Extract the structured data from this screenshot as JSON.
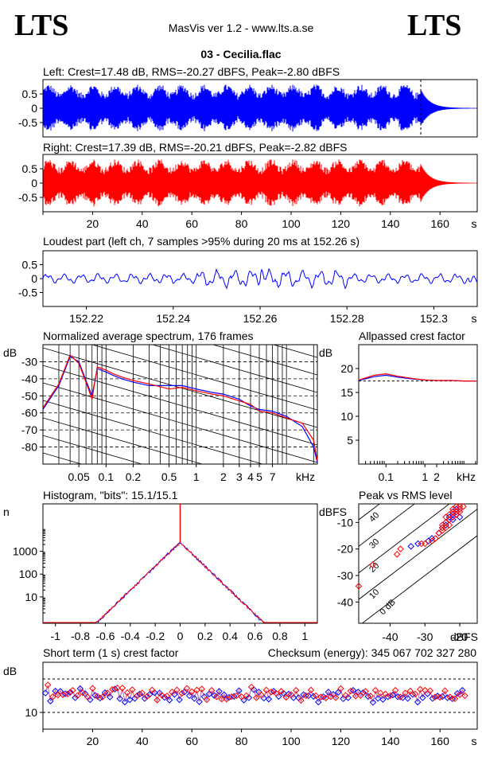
{
  "header": {
    "logo_left": "LTS",
    "logo_right": "LTS",
    "app_title": "MasVis ver 1.2 - www.lts.a.se",
    "file_title": "03 - Cecilia.flac"
  },
  "colors": {
    "left": "#0000ff",
    "right": "#ff0000",
    "axis": "#000000",
    "bg": "#ffffff"
  },
  "chart_data": [
    {
      "id": "left_waveform",
      "type": "area",
      "title": "Left: Crest=17.48 dB, RMS=-20.27 dBFS, Peak=-2.80 dBFS",
      "series": [
        {
          "name": "Left",
          "color": "#0000ff"
        }
      ],
      "yticks": [
        "0.5",
        "0",
        "-0.5"
      ],
      "ylim": [
        -1,
        1
      ],
      "xlim": [
        0,
        175
      ],
      "duration_s": 170,
      "fade_start_s": 152,
      "marker_s": 152.26
    },
    {
      "id": "right_waveform",
      "type": "area",
      "title": "Right: Crest=17.39 dB, RMS=-20.21 dBFS, Peak=-2.82 dBFS",
      "series": [
        {
          "name": "Right",
          "color": "#ff0000"
        }
      ],
      "yticks": [
        "0.5",
        "0",
        "-0.5"
      ],
      "ylim": [
        -1,
        1
      ],
      "xlim": [
        0,
        175
      ],
      "duration_s": 170,
      "xticks": [
        "20",
        "40",
        "60",
        "80",
        "100",
        "120",
        "140",
        "160"
      ],
      "xunit": "s"
    },
    {
      "id": "loudest_part",
      "type": "line",
      "title": "Loudest part (left  ch, 7 samples >95% during 20 ms at 152.26 s)",
      "yticks": [
        "0.5",
        "0",
        "-0.5"
      ],
      "ylim": [
        -1,
        1
      ],
      "xlim": [
        152.21,
        152.31
      ],
      "xticks": [
        "152.22",
        "152.24",
        "152.26",
        "152.28",
        "152.3"
      ],
      "xunit": "s"
    },
    {
      "id": "avg_spectrum",
      "type": "line",
      "title": "Normalized average spectrum, 176 frames",
      "ylabel": "dB",
      "yticks": [
        "-30",
        "-40",
        "-50",
        "-60",
        "-70",
        "-80"
      ],
      "ylim": [
        -90,
        -20
      ],
      "xscale": "log",
      "xlim": [
        0.02,
        22
      ],
      "xunit": "kHz",
      "xticks": [
        "0.05",
        "0.1",
        "0.2",
        "0.5",
        "1",
        "2",
        "3",
        "4",
        "5",
        "7"
      ],
      "series": [
        {
          "name": "Left",
          "color": "#0000ff",
          "x": [
            0.02,
            0.03,
            0.04,
            0.05,
            0.06,
            0.07,
            0.08,
            0.1,
            0.12,
            0.15,
            0.2,
            0.3,
            0.5,
            0.7,
            1,
            1.5,
            2,
            3,
            4,
            5,
            7,
            10,
            15,
            20,
            22
          ],
          "y": [
            -58,
            -44,
            -27,
            -30,
            -41,
            -50,
            -34,
            -36,
            -38,
            -40,
            -42,
            -44,
            -44,
            -44,
            -46,
            -48,
            -49,
            -52,
            -56,
            -58,
            -59,
            -62,
            -68,
            -80,
            -89
          ]
        },
        {
          "name": "Right",
          "color": "#ff0000",
          "x": [
            0.02,
            0.03,
            0.04,
            0.05,
            0.06,
            0.07,
            0.08,
            0.1,
            0.12,
            0.15,
            0.2,
            0.3,
            0.5,
            0.7,
            1,
            1.5,
            2,
            3,
            4,
            5,
            7,
            10,
            15,
            20,
            22
          ],
          "y": [
            -57,
            -43,
            -26,
            -31,
            -42,
            -52,
            -33,
            -35,
            -37,
            -39,
            -41,
            -43,
            -46,
            -45,
            -47,
            -49,
            -50,
            -53,
            -55,
            -59,
            -60,
            -63,
            -66,
            -76,
            -88
          ]
        }
      ]
    },
    {
      "id": "allpassed_crest",
      "type": "line",
      "title": "Allpassed crest factor",
      "ylabel": "dB",
      "yticks": [
        "20",
        "15",
        "10",
        "5"
      ],
      "ylim": [
        0,
        25
      ],
      "xscale": "log",
      "xlim": [
        0.02,
        22
      ],
      "xunit": "kHz",
      "xticks": [
        "0.1",
        "1",
        "2"
      ],
      "reference_db": 17.4,
      "series": [
        {
          "name": "Left",
          "color": "#0000ff",
          "x": [
            0.02,
            0.05,
            0.1,
            0.2,
            0.5,
            1,
            2,
            5,
            10,
            22
          ],
          "y": [
            17.5,
            18.3,
            18.6,
            18.2,
            17.8,
            17.6,
            17.5,
            17.5,
            17.4,
            17.4
          ]
        },
        {
          "name": "Right",
          "color": "#ff0000",
          "x": [
            0.02,
            0.05,
            0.1,
            0.2,
            0.5,
            1,
            2,
            5,
            10,
            22
          ],
          "y": [
            17.6,
            18.6,
            18.9,
            18.4,
            17.9,
            17.6,
            17.5,
            17.5,
            17.4,
            17.4
          ]
        }
      ]
    },
    {
      "id": "histogram",
      "type": "line",
      "title": "Histogram, \"bits\": 15.1/15.1",
      "ylabel": "n",
      "yscale": "log",
      "yticks": [
        "1000",
        "100",
        "10"
      ],
      "ylim": [
        0.7,
        120000
      ],
      "xlim": [
        -1.1,
        1.1
      ],
      "xticks": [
        "-1",
        "-0.8",
        "-0.6",
        "-0.4",
        "-0.2",
        "0",
        "0.2",
        "0.4",
        "0.6",
        "0.8",
        "1"
      ],
      "peak_count": 2500,
      "tail_end": 0.72
    },
    {
      "id": "peak_vs_rms",
      "type": "scatter",
      "title": "Peak vs RMS level",
      "ylabel": "dBFS",
      "xlabel": "dBFS",
      "yticks": [
        "-10",
        "-20",
        "-30",
        "-40"
      ],
      "ylim": [
        -48,
        -3
      ],
      "xticks": [
        "-40",
        "-30",
        "-20"
      ],
      "xlim": [
        -49,
        -15
      ],
      "crest_labels": [
        "40",
        "30",
        "20",
        "10",
        "0 dB"
      ],
      "series": [
        {
          "name": "Left",
          "color": "#0000ff",
          "x": [
            -34,
            -32,
            -29,
            -28,
            -26,
            -25,
            -24,
            -24,
            -23,
            -23,
            -22,
            -22,
            -22,
            -21,
            -21,
            -20,
            -21,
            -22,
            -20
          ],
          "y": [
            -19,
            -18,
            -17,
            -16,
            -14,
            -12,
            -11,
            -10,
            -9,
            -8,
            -8,
            -7,
            -6,
            -7,
            -6,
            -5,
            -5,
            -9,
            -8
          ]
        },
        {
          "name": "Right",
          "color": "#ff0000",
          "x": [
            -49,
            -45,
            -38,
            -37,
            -31,
            -30,
            -28,
            -27,
            -26,
            -25,
            -25,
            -24,
            -24,
            -24,
            -23,
            -23,
            -22,
            -22,
            -22,
            -21,
            -21,
            -21,
            -20,
            -20,
            -20,
            -19,
            -23,
            -25
          ],
          "y": [
            -34,
            -26,
            -22,
            -20,
            -18,
            -18,
            -17,
            -16,
            -14,
            -12,
            -11,
            -10,
            -8,
            -12,
            -9,
            -7,
            -8,
            -6,
            -5,
            -7,
            -6,
            -4,
            -6,
            -5,
            -4,
            -4,
            -11,
            -13
          ]
        }
      ]
    },
    {
      "id": "short_term_crest",
      "type": "scatter",
      "title": "Short term (1 s) crest factor",
      "annotation": "Checksum (energy):   345 067 702 327 280",
      "ylabel": "dB",
      "yticks": [
        "10"
      ],
      "ylim": [
        5,
        25
      ],
      "dashed_levels": [
        10,
        20
      ],
      "xlim": [
        0,
        175
      ],
      "xunit": "s",
      "xticks": [
        "20",
        "40",
        "60",
        "80",
        "100",
        "120",
        "140",
        "160"
      ],
      "series": [
        {
          "name": "Left",
          "color": "#0000ff",
          "y": [
            15.8,
            17.8,
            13.4,
            14.3,
            16.4,
            14.8,
            16.3,
            14.8,
            15.6,
            15.1,
            16.0,
            16.1,
            14.4,
            14.7,
            17.1,
            15.5,
            15.6,
            14.2,
            13.8,
            16.7,
            15.1,
            14.4,
            14.3,
            14.2,
            15.9,
            15.4,
            14.6,
            16.4,
            17.0,
            16.8,
            14.1,
            16.8,
            13.1,
            15.5,
            13.8,
            16.3,
            14.2,
            14.6,
            15.5,
            15.4,
            14.2,
            14.4,
            15.4,
            16.3,
            15.9,
            13.3,
            15.8,
            14.7,
            14.5,
            14.5,
            13.7,
            15.7,
            15.4,
            16.3,
            13.8,
            15.3,
            16.1,
            16.8,
            15.0,
            15.8,
            14.2,
            16.3,
            13.2,
            16.6,
            14.7,
            13.4,
            15.5,
            16.2,
            15.1,
            14.3,
            16.3,
            13.6,
            15.3,
            13.6,
            14.5,
            14.3,
            14.8,
            14.6,
            16.5,
            14.3,
            13.7,
            14.6,
            14.4,
            17.2,
            16.8,
            14.0,
            16.1,
            14.8,
            14.3,
            16.3,
            14.0,
            15.7,
            16.3,
            15.3,
            14.8,
            15.9,
            15.7,
            14.1,
            15.5,
            14.9,
            14.4,
            16.2,
            14.4,
            13.2,
            15.3,
            14.6,
            15.0,
            16.3,
            14.8,
            14.6,
            13.1,
            14.2,
            14.7,
            13.9,
            16.1,
            14.3,
            15.4,
            14.0,
            16.0,
            16.7,
            14.1,
            14.7,
            14.4,
            16.0,
            16.6,
            14.5,
            16.1,
            14.7,
            15.9,
            15.9,
            14.8,
            14.5,
            13.0,
            16.2,
            14.2,
            15.4,
            13.9,
            15.1,
            14.7,
            14.6,
            15.2,
            16.2,
            14.7,
            14.2,
            14.4,
            15.4,
            14.2,
            16.0,
            15.4,
            15.1,
            13.1,
            16.5,
            14.4,
            16.2,
            15.6,
            16.1,
            14.2,
            14.2,
            14.9,
            14.1,
            14.8,
            16.1,
            14.4,
            14.2,
            14.1,
            13.7,
            15.7,
            14.9,
            16.6,
            14.6
          ]
        },
        {
          "name": "Right",
          "color": "#ff0000",
          "y": [
            16.3,
            18.2,
            13.7,
            14.7,
            16.9,
            15.2,
            16.7,
            15.3,
            16.0,
            15.5,
            16.5,
            16.6,
            14.8,
            15.1,
            17.6,
            15.9,
            16.0,
            14.6,
            14.2,
            17.2,
            15.5,
            14.8,
            14.7,
            14.6,
            16.4,
            15.8,
            15.0,
            16.9,
            17.5,
            17.3,
            14.5,
            17.3,
            13.5,
            15.9,
            14.2,
            16.8,
            14.6,
            15.0,
            15.9,
            15.8,
            14.6,
            14.8,
            15.8,
            16.7,
            16.3,
            13.7,
            16.2,
            15.1,
            14.9,
            14.9,
            14.1,
            16.1,
            15.8,
            16.7,
            14.2,
            15.7,
            16.5,
            17.2,
            15.4,
            16.2,
            14.6,
            16.7,
            13.6,
            17.0,
            15.1,
            13.8,
            15.9,
            16.6,
            15.5,
            14.7,
            16.7,
            14.0,
            15.7,
            14.0,
            14.9,
            14.7,
            15.2,
            15.0,
            16.9,
            14.7,
            14.1,
            15.0,
            14.8,
            17.6,
            17.2,
            14.4,
            16.5,
            15.2,
            14.7,
            16.7,
            14.4,
            16.1,
            16.7,
            15.7,
            15.2,
            16.3,
            16.1,
            14.5,
            15.9,
            15.3,
            14.8,
            16.6,
            14.8,
            13.6,
            15.7,
            15.0,
            15.4,
            16.7,
            15.2,
            15.0,
            13.5,
            14.6,
            15.1,
            14.3,
            16.5,
            14.7,
            15.8,
            14.4,
            16.4,
            17.1,
            14.5,
            15.1,
            14.8,
            16.4,
            17.0,
            14.9,
            16.5,
            15.1,
            16.3,
            16.3,
            15.2,
            14.9,
            13.4,
            16.6,
            14.6,
            15.8,
            14.3,
            15.5,
            15.1,
            15.0,
            15.6,
            16.6,
            15.1,
            14.6,
            14.8,
            15.8,
            14.6,
            16.4,
            15.8,
            15.5,
            13.5,
            16.9,
            14.8,
            16.6,
            16.0,
            16.5,
            14.6,
            14.6,
            15.3,
            14.5,
            15.2,
            16.5,
            14.8,
            14.6,
            14.5,
            14.1,
            16.1,
            15.3,
            17.0,
            15.0
          ]
        }
      ]
    }
  ]
}
